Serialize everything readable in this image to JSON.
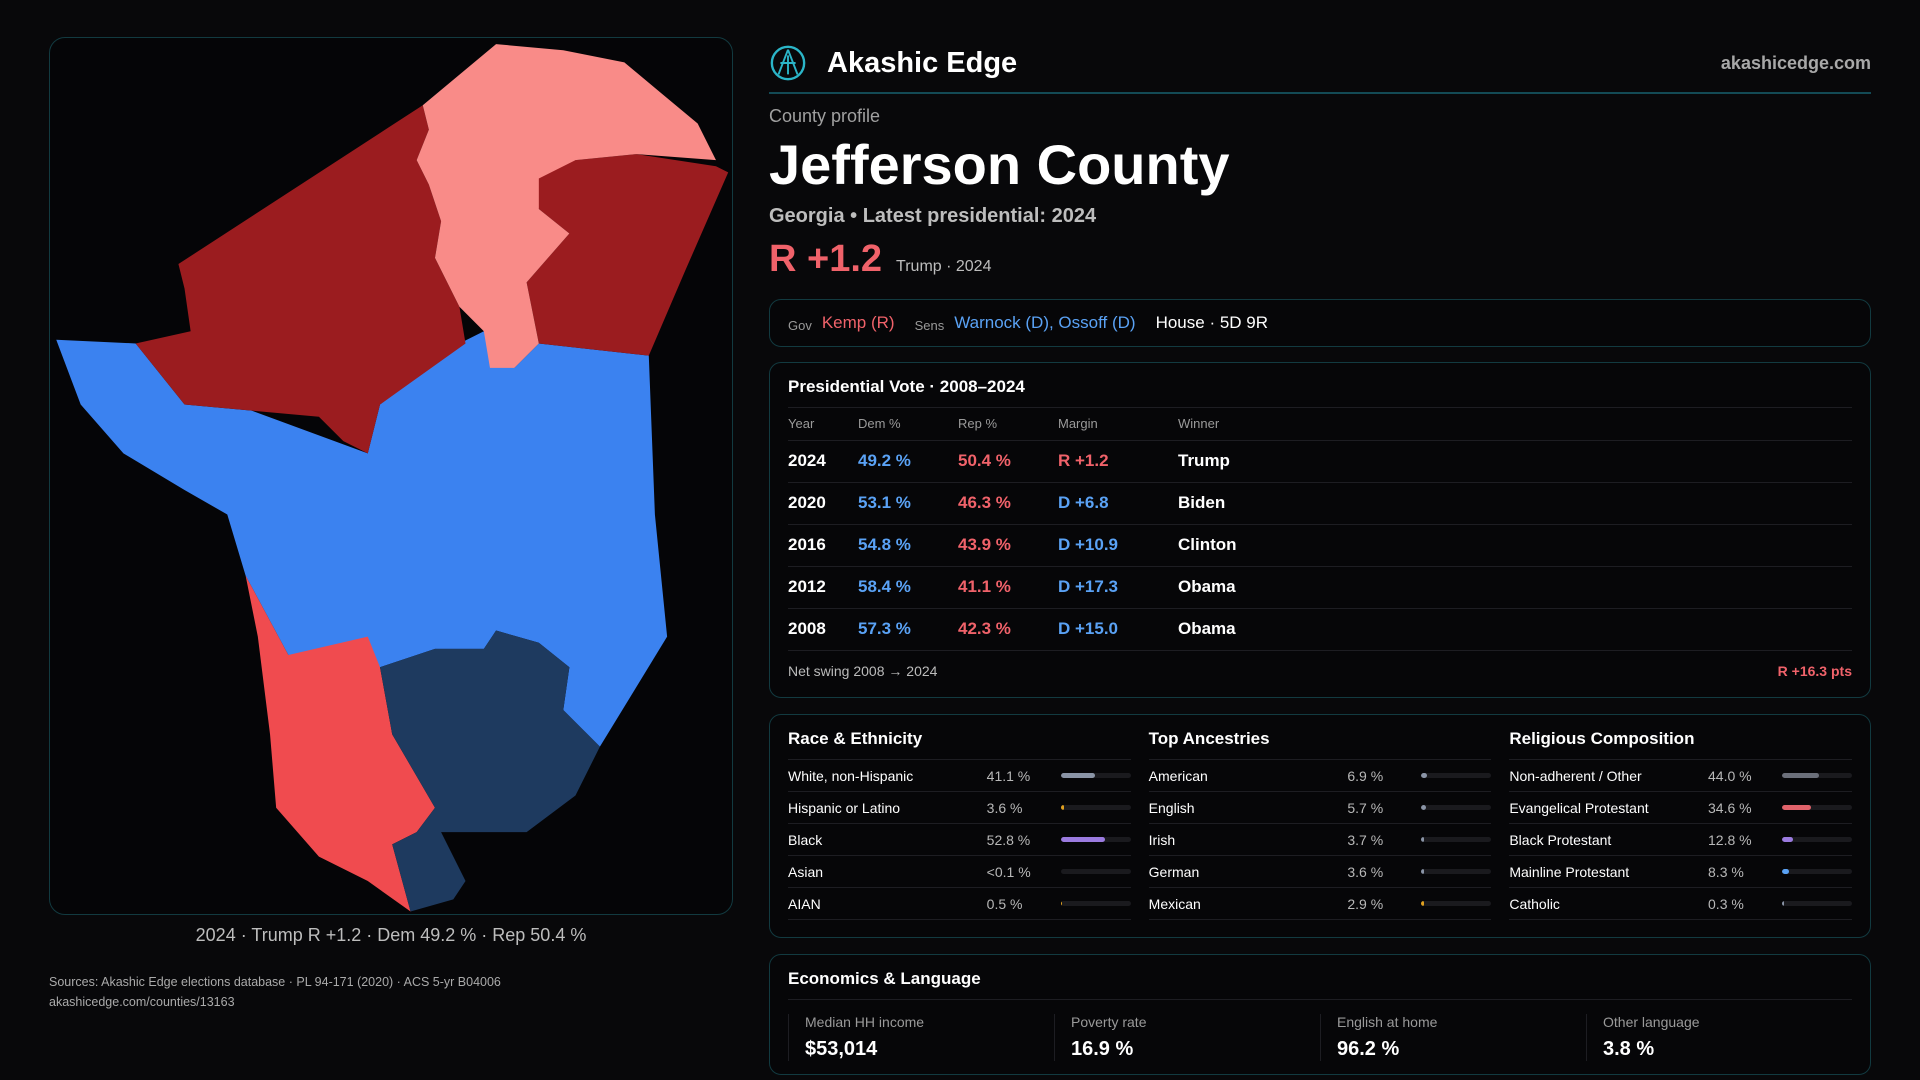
{
  "brand": {
    "name": "Akashic Edge",
    "domain": "akashicedge.com"
  },
  "profile": {
    "kicker": "County profile",
    "title": "Jefferson County",
    "subtitle": "Georgia • Latest presidential: 2024",
    "margin": "R +1.2",
    "margin_note": "Trump · 2024"
  },
  "officials": {
    "gov_label": "Gov",
    "gov": "Kemp (R)",
    "sens_label": "Sens",
    "sens": "Warnock (D), Ossoff (D)",
    "house": "House · 5D 9R"
  },
  "presidential": {
    "title": "Presidential Vote · 2008–2024",
    "headers": [
      "Year",
      "Dem %",
      "Rep %",
      "Margin",
      "Winner"
    ],
    "rows": [
      {
        "year": "2024",
        "dem": "49.2 %",
        "rep": "50.4 %",
        "margin": "R +1.2",
        "winner": "Trump",
        "party": "R"
      },
      {
        "year": "2020",
        "dem": "53.1 %",
        "rep": "46.3 %",
        "margin": "D +6.8",
        "winner": "Biden",
        "party": "D"
      },
      {
        "year": "2016",
        "dem": "54.8 %",
        "rep": "43.9 %",
        "margin": "D +10.9",
        "winner": "Clinton",
        "party": "D"
      },
      {
        "year": "2012",
        "dem": "58.4 %",
        "rep": "41.1 %",
        "margin": "D +17.3",
        "winner": "Obama",
        "party": "D"
      },
      {
        "year": "2008",
        "dem": "57.3 %",
        "rep": "42.3 %",
        "margin": "D +15.0",
        "winner": "Obama",
        "party": "D"
      }
    ],
    "swing_label": "Net swing 2008 → 2024",
    "swing_value": "R +16.3 pts"
  },
  "demographics": [
    {
      "title": "Race & Ethnicity",
      "items": [
        {
          "name": "White, non-Hispanic",
          "value": "41.1 %",
          "pct": 41.1,
          "color": "#8a94a6"
        },
        {
          "name": "Hispanic or Latino",
          "value": "3.6 %",
          "pct": 3.6,
          "color": "#e0a020"
        },
        {
          "name": "Black",
          "value": "52.8 %",
          "pct": 52.8,
          "color": "#9b7be0"
        },
        {
          "name": "Asian",
          "value": "<0.1 %",
          "pct": 0.05,
          "color": "#5aa2f5"
        },
        {
          "name": "AIAN",
          "value": "0.5 %",
          "pct": 0.5,
          "color": "#e0a020"
        }
      ]
    },
    {
      "title": "Top Ancestries",
      "items": [
        {
          "name": "American",
          "value": "6.9 %",
          "pct": 6.9,
          "color": "#8a94a6"
        },
        {
          "name": "English",
          "value": "5.7 %",
          "pct": 5.7,
          "color": "#8a94a6"
        },
        {
          "name": "Irish",
          "value": "3.7 %",
          "pct": 3.7,
          "color": "#8a94a6"
        },
        {
          "name": "German",
          "value": "3.6 %",
          "pct": 3.6,
          "color": "#8a94a6"
        },
        {
          "name": "Mexican",
          "value": "2.9 %",
          "pct": 2.9,
          "color": "#e0a020"
        }
      ]
    },
    {
      "title": "Religious Composition",
      "items": [
        {
          "name": "Non-adherent / Other",
          "value": "44.0 %",
          "pct": 44.0,
          "color": "#6b6f7a"
        },
        {
          "name": "Evangelical Protestant",
          "value": "34.6 %",
          "pct": 34.6,
          "color": "#e0626a"
        },
        {
          "name": "Black Protestant",
          "value": "12.8 %",
          "pct": 12.8,
          "color": "#9b7be0"
        },
        {
          "name": "Mainline Protestant",
          "value": "8.3 %",
          "pct": 8.3,
          "color": "#5aa2f5"
        },
        {
          "name": "Catholic",
          "value": "0.3 %",
          "pct": 0.3,
          "color": "#8a94a6"
        }
      ]
    }
  ],
  "economics": {
    "title": "Economics & Language",
    "stats": [
      {
        "label": "Median HH income",
        "value": "$53,014"
      },
      {
        "label": "Poverty rate",
        "value": "16.9 %"
      },
      {
        "label": "English at home",
        "value": "96.2 %"
      },
      {
        "label": "Other language",
        "value": "3.8 %"
      }
    ]
  },
  "sources": {
    "line1": "Sources: Akashic Edge elections database · PL 94-171 (2020) · ACS 5-yr B04006",
    "line2": "akashicedge.com/counties/13163"
  },
  "map": {
    "caption": "2024 · Trump R +1.2 · Dem 49.2 % · Rep 50.4 %",
    "colors": {
      "strong_r": "#9b1c1f",
      "lean_r_light": "#f98b88",
      "lean_r": "#f04b4f",
      "lean_d": "#3b82f0",
      "strong_d": "#1e3a5f"
    }
  }
}
